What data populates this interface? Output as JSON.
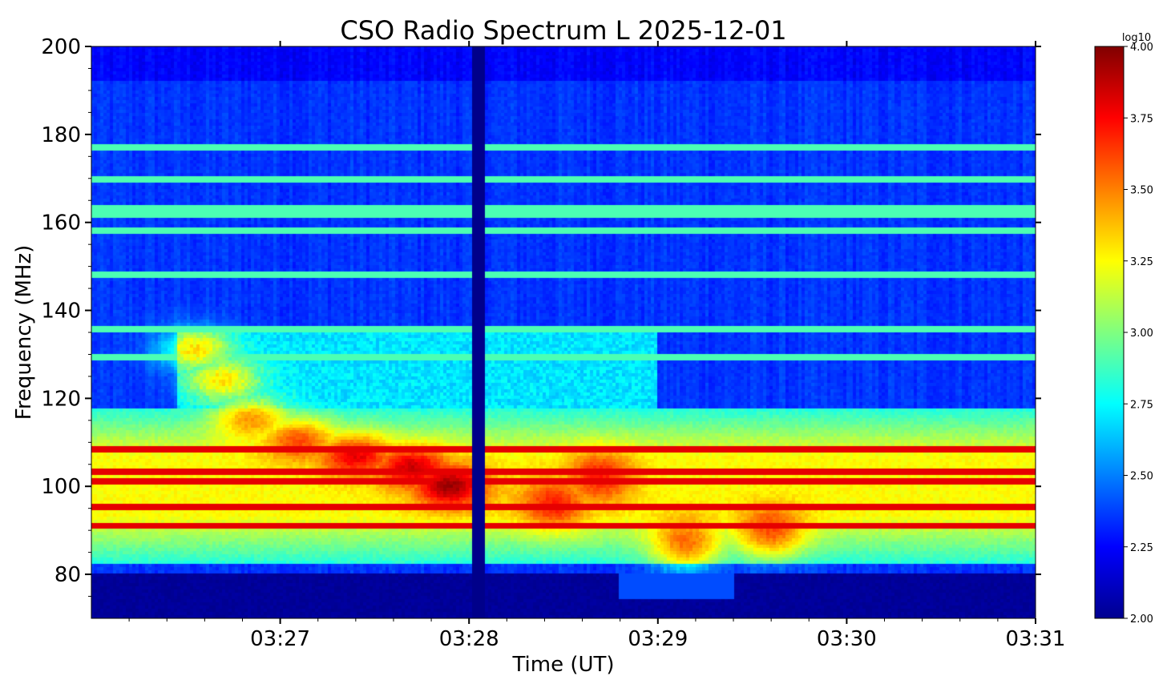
{
  "chart_data": {
    "type": "heatmap",
    "title": "CSO Radio Spectrum L 2025-12-01",
    "xlabel": "Time (UT)",
    "ylabel": "Frequency (MHz)",
    "x_ticks": [
      "03:27",
      "03:28",
      "03:29",
      "03:30",
      "03:31"
    ],
    "x_tick_minutes": [
      1,
      2,
      3,
      4,
      5
    ],
    "xlim_minutes": [
      0,
      5
    ],
    "y_ticks": [
      80,
      100,
      120,
      140,
      160,
      180,
      200
    ],
    "ylim": [
      70,
      200
    ],
    "colorbar": {
      "label": "log10",
      "min": 2.0,
      "max": 4.0,
      "ticks": [
        "2.00",
        "2.25",
        "2.50",
        "2.75",
        "3.00",
        "3.25",
        "3.50",
        "3.75",
        "4.00"
      ],
      "tick_values": [
        2.0,
        2.25,
        2.5,
        2.75,
        3.0,
        3.25,
        3.5,
        3.75,
        4.0
      ],
      "colormap": "jet"
    },
    "features": {
      "background_level": 2.35,
      "low_freq_floor": {
        "freq_max": 80,
        "level": 2.05
      },
      "broadband_region": {
        "freq_min": 82,
        "freq_max": 118,
        "level": 3.15
      },
      "data_gap": {
        "t_minutes": 2.05,
        "level": 2.02
      },
      "burst_drift": [
        {
          "t": 0.55,
          "f": 131,
          "v": 3.7
        },
        {
          "t": 0.7,
          "f": 124,
          "v": 3.7
        },
        {
          "t": 0.85,
          "f": 116,
          "v": 3.65
        },
        {
          "t": 1.1,
          "f": 111,
          "v": 3.6
        },
        {
          "t": 1.4,
          "f": 107,
          "v": 3.65
        },
        {
          "t": 1.7,
          "f": 104,
          "v": 3.7
        },
        {
          "t": 1.9,
          "f": 100,
          "v": 3.8
        }
      ],
      "burst_secondary": [
        {
          "t": 2.45,
          "f": 96,
          "v": 3.55
        },
        {
          "t": 2.7,
          "f": 102,
          "v": 3.55
        },
        {
          "t": 3.15,
          "f": 86,
          "v": 3.65
        },
        {
          "t": 3.6,
          "f": 89,
          "v": 3.6
        }
      ],
      "rfi_lines_mhz": [
        177,
        170,
        163,
        162,
        158,
        148,
        136,
        129,
        108,
        103,
        101,
        95,
        91
      ]
    }
  }
}
